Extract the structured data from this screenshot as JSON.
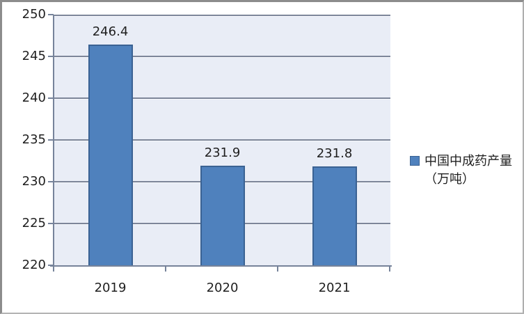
{
  "chart_data": {
    "type": "bar",
    "title": "",
    "categories": [
      "2019",
      "2020",
      "2021"
    ],
    "values": [
      246.4,
      231.9,
      231.8
    ],
    "data_labels": [
      "246.4",
      "231.9",
      "231.8"
    ],
    "series_name": "中国中成药产量（万吨）",
    "xlabel": "",
    "ylabel": "",
    "ylim": [
      220,
      250
    ],
    "ytick_step": 5,
    "yticks": [
      250,
      245,
      240,
      235,
      230,
      225,
      220
    ],
    "grid": true,
    "legend_position": "right",
    "legend_labels": [
      "中国中成药产量（万吨）"
    ]
  },
  "legend": {
    "label": "中国中成药产量（万吨）"
  },
  "colors": {
    "bar_fill": "#4F81BD",
    "bar_border": "#3A6293",
    "plot_bg": "#E9EDF6",
    "gridline": "#7D8699",
    "axis": "#76839A",
    "text": "#1F1F1F",
    "frame_border": "#8C8C8C"
  }
}
